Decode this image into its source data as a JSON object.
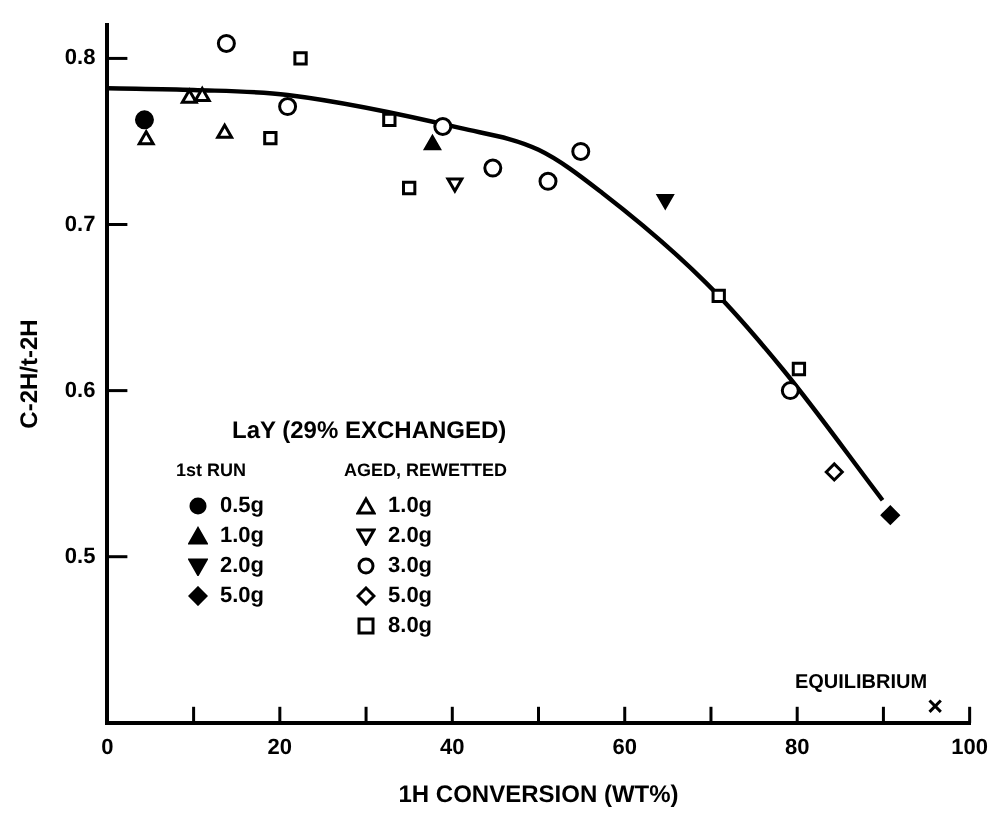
{
  "chart_data": {
    "type": "scatter",
    "xlabel": "1H CONVERSION (WT%)",
    "ylabel": "C-2H/t-2H",
    "legend_title": "LaY (29% EXCHANGED)",
    "legend": "left",
    "annotations": [
      "1st RUN",
      "AGED, REWETTED",
      {
        "text": "EQUILIBRIUM",
        "x": 96,
        "y": 0.41
      }
    ],
    "xlim": [
      0,
      100
    ],
    "ylim": [
      0.4,
      0.82
    ],
    "xticks": [
      0,
      {
        "value": 10,
        "label": null
      },
      20,
      {
        "value": 30,
        "label": null
      },
      40,
      {
        "value": 50,
        "label": null
      },
      60,
      {
        "value": 70,
        "label": null
      },
      80,
      {
        "value": 90,
        "label": null
      },
      100
    ],
    "yticks": [
      0.5,
      0.6,
      0.7,
      0.8
    ],
    "grid": false,
    "series": [
      {
        "name": "0.5g",
        "color": "#000000",
        "marker": "circle",
        "x": [
          4.3
        ],
        "values": [
          0.763
        ]
      },
      {
        "name": "1.0g",
        "color": "#000000",
        "marker": "triangle",
        "x": [
          37.7
        ],
        "values": [
          0.748
        ]
      },
      {
        "name": "2.0g",
        "color": "#000000",
        "marker": "triangle-down",
        "x": [
          64.7
        ],
        "values": [
          0.715
        ]
      },
      {
        "name": "5.0g",
        "color": "#000000",
        "marker": "diamond",
        "x": [
          90.8
        ],
        "values": [
          0.525
        ]
      },
      {
        "name": "1.0g",
        "color": "#000000",
        "marker": "triangle-open",
        "x": [
          4.5,
          9.5,
          11.0,
          13.6
        ],
        "values": [
          0.751,
          0.776,
          0.777,
          0.755
        ]
      },
      {
        "name": "2.0g",
        "color": "#000000",
        "marker": "triangle-down-open",
        "x": [
          40.3
        ],
        "values": [
          0.725
        ]
      },
      {
        "name": "3.0g",
        "color": "#000000",
        "marker": "circle-open",
        "x": [
          13.8,
          20.9,
          38.9,
          44.7,
          51.1,
          54.9,
          79.2
        ],
        "values": [
          0.809,
          0.771,
          0.759,
          0.734,
          0.726,
          0.744,
          0.6
        ]
      },
      {
        "name": "5.0g",
        "color": "#000000",
        "marker": "diamond-open",
        "x": [
          84.3
        ],
        "values": [
          0.551
        ]
      },
      {
        "name": "8.0g",
        "color": "#000000",
        "marker": "square-open",
        "x": [
          18.9,
          22.4,
          32.7,
          35.0,
          70.9,
          80.2
        ],
        "values": [
          0.752,
          0.8,
          0.763,
          0.722,
          0.657,
          0.613
        ]
      },
      {
        "type": "line",
        "color": "#000000",
        "marker": "none",
        "x": [
          0,
          10,
          20.9,
          41,
          50,
          57.4,
          69.4,
          78.3,
          89.9
        ],
        "values": [
          0.782,
          0.781,
          0.778,
          0.758,
          0.745,
          0.719,
          0.665,
          0.613,
          0.534
        ]
      },
      {
        "color": "#000000",
        "marker": "cross",
        "x": [
          96
        ],
        "values": [
          0.41
        ]
      }
    ]
  }
}
